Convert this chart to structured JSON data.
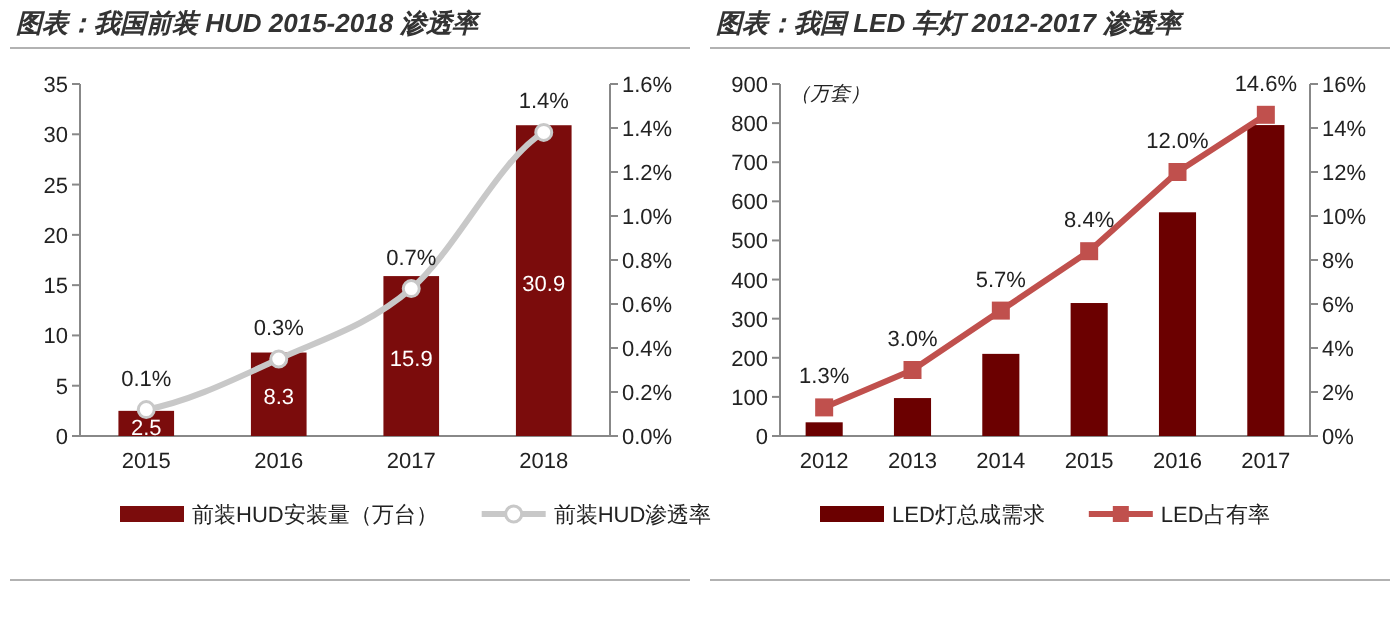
{
  "chart_data": [
    {
      "type": "bar",
      "title": "图表：我国前装 HUD 2015-2018 渗透率",
      "categories": [
        "2015",
        "2016",
        "2017",
        "2018"
      ],
      "series": [
        {
          "name": "前装HUD安装量（万台）",
          "color": "#7b0c0c",
          "values": [
            2.5,
            8.3,
            15.9,
            30.9
          ],
          "value_labels": [
            "2.5",
            "8.3",
            "15.9",
            "30.9"
          ]
        },
        {
          "name": "前装HUD渗透率",
          "type": "line",
          "axis": "y2",
          "color": "#c8c8c8",
          "marker": "circle",
          "values": [
            0.12,
            0.35,
            0.67,
            1.38
          ],
          "value_labels": [
            "0.1%",
            "0.3%",
            "0.7%",
            "1.4%"
          ]
        }
      ],
      "ylim": [
        0,
        35
      ],
      "yticks": [
        0,
        5,
        10,
        15,
        20,
        25,
        30,
        35
      ],
      "y2lim": [
        0,
        1.6
      ],
      "y2ticks": [
        {
          "value": 0,
          "label": "0.0%"
        },
        {
          "value": 0.2,
          "label": "0.2%"
        },
        {
          "value": 0.4,
          "label": "0.4%"
        },
        {
          "value": 0.6,
          "label": "0.6%"
        },
        {
          "value": 0.8,
          "label": "0.8%"
        },
        {
          "value": 1.0,
          "label": "1.0%"
        },
        {
          "value": 1.2,
          "label": "1.2%"
        },
        {
          "value": 1.4,
          "label": "1.4%"
        },
        {
          "value": 1.6,
          "label": "1.6%"
        }
      ],
      "legend": "bottom",
      "grid": false
    },
    {
      "type": "bar",
      "title": "图表：我国 LED 车灯 2012-2017 渗透率",
      "ylabel": "（万套）",
      "categories": [
        "2012",
        "2013",
        "2014",
        "2015",
        "2016",
        "2017"
      ],
      "series": [
        {
          "name": "LED灯总成需求",
          "color": "#6b0000",
          "values": [
            35,
            97,
            210,
            340,
            572,
            795
          ]
        },
        {
          "name": "LED占有率",
          "type": "line",
          "axis": "y2",
          "color": "#c0504d",
          "marker": "square",
          "values": [
            1.3,
            3.0,
            5.7,
            8.4,
            12.0,
            14.6
          ],
          "value_labels": [
            "1.3%",
            "3.0%",
            "5.7%",
            "8.4%",
            "12.0%",
            "14.6%"
          ]
        }
      ],
      "ylim": [
        0,
        900
      ],
      "yticks": [
        0,
        100,
        200,
        300,
        400,
        500,
        600,
        700,
        800,
        900
      ],
      "y2lim": [
        0,
        16
      ],
      "y2ticks": [
        {
          "value": 0,
          "label": "0%"
        },
        {
          "value": 2,
          "label": "2%"
        },
        {
          "value": 4,
          "label": "4%"
        },
        {
          "value": 6,
          "label": "6%"
        },
        {
          "value": 8,
          "label": "8%"
        },
        {
          "value": 10,
          "label": "10%"
        },
        {
          "value": 12,
          "label": "12%"
        },
        {
          "value": 14,
          "label": "14%"
        },
        {
          "value": 16,
          "label": "16%"
        }
      ],
      "legend": "bottom",
      "grid": false
    }
  ]
}
